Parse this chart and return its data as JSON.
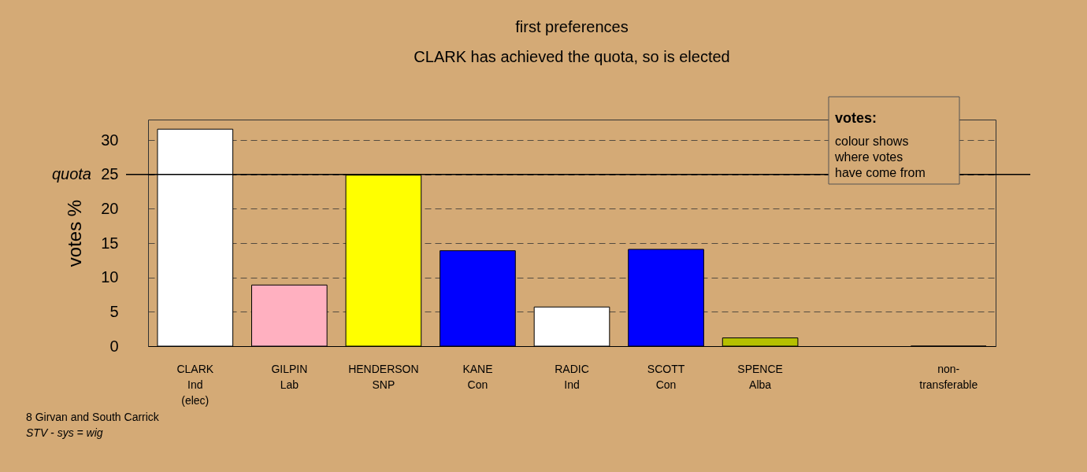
{
  "chart_data": {
    "type": "bar",
    "title": "first preferences",
    "subtitle": "CLARK has achieved the quota, so is elected",
    "ylabel": "votes %",
    "categories": [
      "CLARK\nInd\n(elec)",
      "GILPIN\nLab",
      "HENDERSON\nSNP",
      "KANE\nCon",
      "RADIC\nInd",
      "SCOTT\nCon",
      "SPENCE\nAlba",
      null,
      "non-\ntransferable"
    ],
    "values": [
      31.6,
      8.9,
      24.9,
      13.9,
      5.7,
      14.1,
      1.2,
      null,
      0
    ],
    "colors": [
      "#ffffff",
      "#ffb0c0",
      "#ffff00",
      "#0000ff",
      "#ffffff",
      "#0000ff",
      "#b5c000",
      "#ffffff",
      "#000000"
    ],
    "ylim": [
      0,
      33
    ],
    "yticks": [
      0,
      5,
      10,
      15,
      20,
      25,
      30
    ],
    "grid": "y",
    "ref_lines": [
      {
        "axis": "y",
        "value": 25,
        "label": "quota"
      }
    ],
    "annotations": [
      "votes:",
      "colour shows\nwhere votes\nhave come from",
      "8 Girvan and South Carrick",
      "STV - sys = wig"
    ]
  }
}
